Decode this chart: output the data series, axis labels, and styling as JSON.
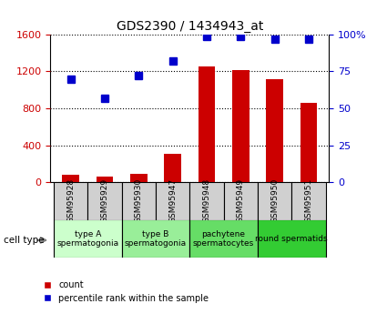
{
  "title": "GDS2390 / 1434943_at",
  "samples": [
    "GSM95928",
    "GSM95929",
    "GSM95930",
    "GSM95947",
    "GSM95948",
    "GSM95949",
    "GSM95950",
    "GSM95951"
  ],
  "counts": [
    80,
    60,
    90,
    310,
    1250,
    1210,
    1120,
    860
  ],
  "percentile_ranks": [
    70,
    57,
    72,
    82,
    99,
    99,
    97,
    97
  ],
  "ylim_left": [
    0,
    1600
  ],
  "ylim_right": [
    0,
    100
  ],
  "yticks_left": [
    0,
    400,
    800,
    1200,
    1600
  ],
  "yticks_right": [
    0,
    25,
    50,
    75,
    100
  ],
  "bar_color": "#cc0000",
  "dot_color": "#0000cc",
  "cell_types": [
    {
      "label": "type A\nspermatogonia",
      "samples": [
        0,
        1
      ],
      "color": "#ccffcc"
    },
    {
      "label": "type B\nspermatogonia",
      "samples": [
        2,
        3
      ],
      "color": "#99ee99"
    },
    {
      "label": "pachytene\nspermatocytes",
      "samples": [
        4,
        5
      ],
      "color": "#66dd66"
    },
    {
      "label": "round spermatids",
      "samples": [
        6,
        7
      ],
      "color": "#33cc33"
    }
  ],
  "legend_label_bar": "count",
  "legend_label_dot": "percentile rank within the sample",
  "cell_type_label": "cell type",
  "background_color": "#ffffff",
  "grid_color": "#000000",
  "tick_color_left": "#cc0000",
  "tick_color_right": "#0000cc",
  "bar_width": 0.5
}
